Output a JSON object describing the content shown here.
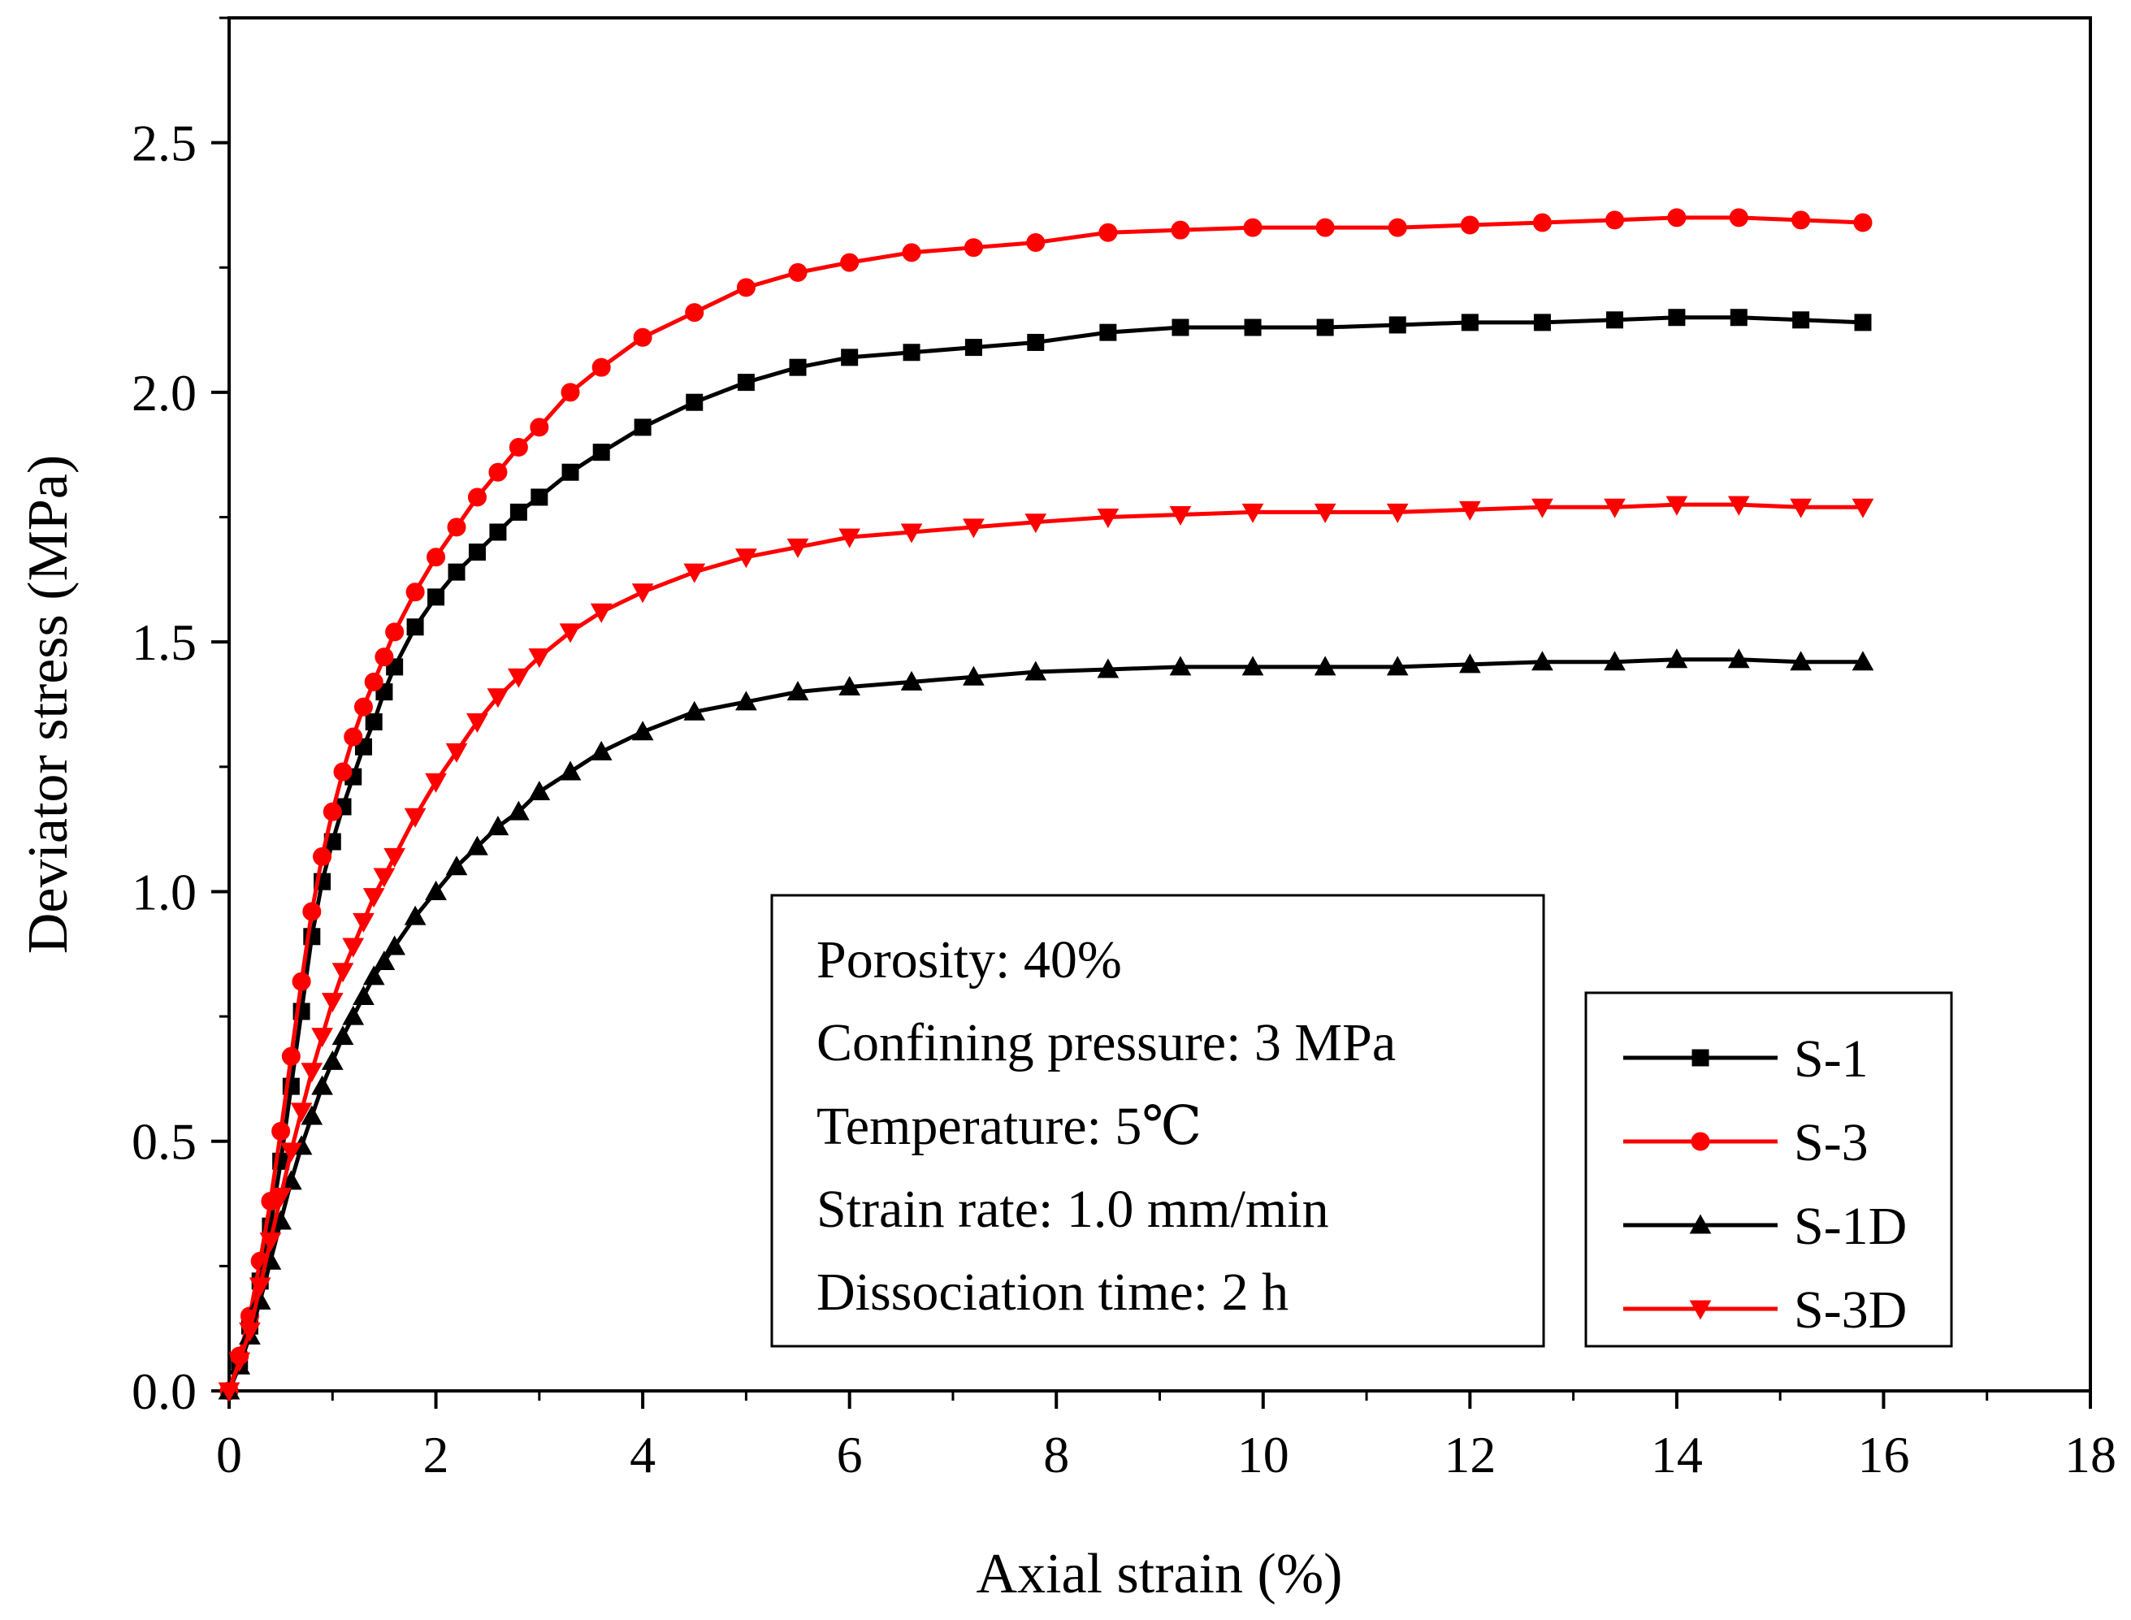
{
  "chart_data": {
    "type": "line",
    "xlabel": "Axial strain (%)",
    "ylabel": "Deviator stress (MPa)",
    "xlim": [
      0,
      18
    ],
    "ylim": [
      0,
      2.75
    ],
    "x_ticks": [
      0,
      2,
      4,
      6,
      8,
      10,
      12,
      14,
      16,
      18
    ],
    "y_ticks": [
      0.0,
      0.5,
      1.0,
      1.5,
      2.0,
      2.5
    ],
    "x_tick_labels": [
      "0",
      "2",
      "4",
      "6",
      "8",
      "10",
      "12",
      "14",
      "16",
      "18"
    ],
    "y_tick_labels": [
      "0.0",
      "0.5",
      "1.0",
      "1.5",
      "2.0",
      "2.5"
    ],
    "grid": false,
    "legend_position": "bottom-right",
    "annotation": {
      "lines": [
        "Porosity: 40%",
        "Confining pressure: 3 MPa",
        "Temperature: 5℃",
        "Strain rate: 1.0 mm/min",
        "Dissociation time: 2 h"
      ]
    },
    "x": [
      0,
      0.1,
      0.2,
      0.3,
      0.4,
      0.5,
      0.6,
      0.7,
      0.8,
      0.9,
      1.0,
      1.1,
      1.2,
      1.3,
      1.4,
      1.5,
      1.6,
      1.8,
      2.0,
      2.2,
      2.4,
      2.6,
      2.8,
      3.0,
      3.3,
      3.6,
      4.0,
      4.5,
      5.0,
      5.5,
      6.0,
      6.6,
      7.2,
      7.8,
      8.5,
      9.2,
      9.9,
      10.6,
      11.3,
      12.0,
      12.7,
      13.4,
      14.0,
      14.6,
      15.2,
      15.8
    ],
    "series": [
      {
        "name": "S-1",
        "color": "#000000",
        "marker": "square",
        "values": [
          0,
          0.06,
          0.13,
          0.22,
          0.33,
          0.46,
          0.61,
          0.76,
          0.91,
          1.02,
          1.1,
          1.17,
          1.23,
          1.29,
          1.34,
          1.4,
          1.45,
          1.53,
          1.59,
          1.64,
          1.68,
          1.72,
          1.76,
          1.79,
          1.84,
          1.88,
          1.93,
          1.98,
          2.02,
          2.05,
          2.07,
          2.08,
          2.09,
          2.1,
          2.12,
          2.13,
          2.13,
          2.13,
          2.135,
          2.14,
          2.14,
          2.145,
          2.15,
          2.15,
          2.145,
          2.14
        ]
      },
      {
        "name": "S-3",
        "color": "#ff0000",
        "marker": "circle",
        "values": [
          0,
          0.07,
          0.15,
          0.26,
          0.38,
          0.52,
          0.67,
          0.82,
          0.96,
          1.07,
          1.16,
          1.24,
          1.31,
          1.37,
          1.42,
          1.47,
          1.52,
          1.6,
          1.67,
          1.73,
          1.79,
          1.84,
          1.89,
          1.93,
          2.0,
          2.05,
          2.11,
          2.16,
          2.21,
          2.24,
          2.26,
          2.28,
          2.29,
          2.3,
          2.32,
          2.325,
          2.33,
          2.33,
          2.33,
          2.335,
          2.34,
          2.345,
          2.35,
          2.35,
          2.345,
          2.34
        ]
      },
      {
        "name": "S-1D",
        "color": "#000000",
        "marker": "triangle-up",
        "values": [
          0,
          0.05,
          0.11,
          0.18,
          0.26,
          0.34,
          0.42,
          0.49,
          0.55,
          0.61,
          0.66,
          0.71,
          0.75,
          0.79,
          0.83,
          0.86,
          0.89,
          0.95,
          1.0,
          1.05,
          1.09,
          1.13,
          1.16,
          1.2,
          1.24,
          1.28,
          1.32,
          1.36,
          1.38,
          1.4,
          1.41,
          1.42,
          1.43,
          1.44,
          1.445,
          1.45,
          1.45,
          1.45,
          1.45,
          1.455,
          1.46,
          1.46,
          1.465,
          1.465,
          1.46,
          1.46
        ]
      },
      {
        "name": "S-3D",
        "color": "#ff0000",
        "marker": "triangle-down",
        "values": [
          0,
          0.06,
          0.12,
          0.21,
          0.3,
          0.39,
          0.48,
          0.56,
          0.64,
          0.71,
          0.78,
          0.84,
          0.89,
          0.94,
          0.99,
          1.03,
          1.07,
          1.15,
          1.22,
          1.28,
          1.34,
          1.39,
          1.43,
          1.47,
          1.52,
          1.56,
          1.6,
          1.64,
          1.67,
          1.69,
          1.71,
          1.72,
          1.73,
          1.74,
          1.75,
          1.755,
          1.76,
          1.76,
          1.76,
          1.765,
          1.77,
          1.77,
          1.775,
          1.775,
          1.77,
          1.77
        ]
      }
    ]
  }
}
